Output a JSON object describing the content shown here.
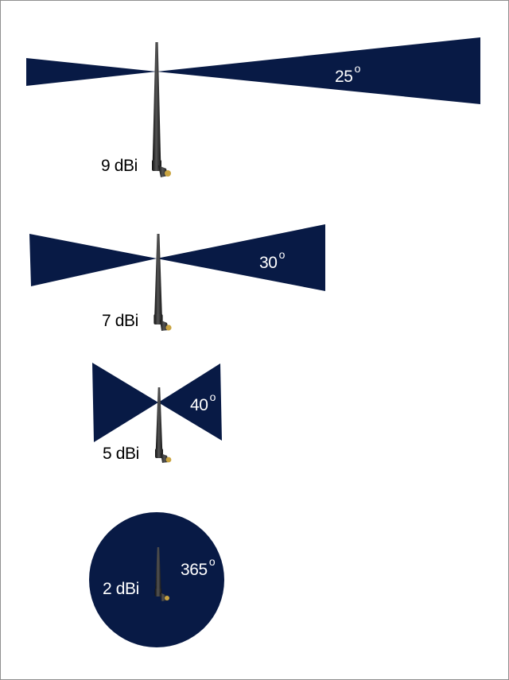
{
  "colors": {
    "beam": "#081a45",
    "antenna": "#1f1f1f",
    "antenna_highlight": "#555555",
    "connector": "#c9a441",
    "background": "#ffffff",
    "border": "#8f8f8f"
  },
  "diagram": {
    "antennas": [
      {
        "gain_label": "9 dBi",
        "beamwidth_value": "25",
        "beamwidth_unit": "o",
        "pattern": "narrow-fan-beam"
      },
      {
        "gain_label": "7 dBi",
        "beamwidth_value": "30",
        "beamwidth_unit": "o",
        "pattern": "fan-beam"
      },
      {
        "gain_label": "5 dBi",
        "beamwidth_value": "40",
        "beamwidth_unit": "o",
        "pattern": "wide-fan-beam"
      },
      {
        "gain_label": "2 dBi",
        "beamwidth_value": "365",
        "beamwidth_unit": "o",
        "pattern": "omnidirectional-circle"
      }
    ],
    "antenna_icon": "rubber-duck-antenna-icon"
  }
}
